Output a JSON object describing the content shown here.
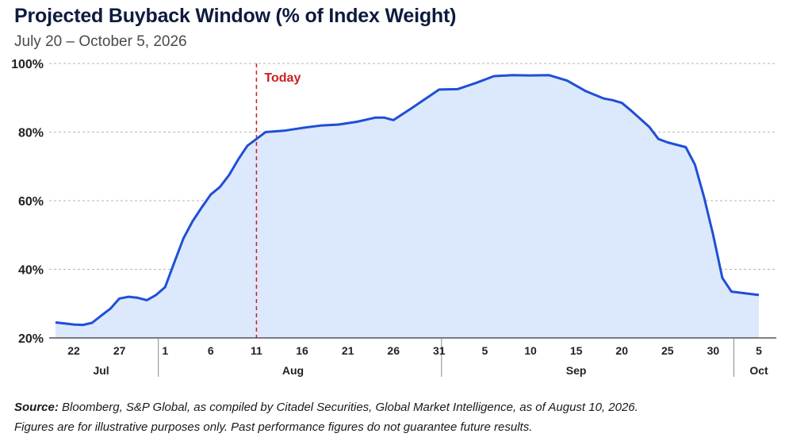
{
  "title": "Projected Buyback Window (% of Index Weight)",
  "subtitle": "July 20 – October 5, 2026",
  "source_label": "Source:",
  "source_text": "Bloomberg, S&P Global, as compiled by Citadel Securities, Global Market Intelligence, as of August 10, 2026.",
  "disclaimer": "Figures are for illustrative purposes only. Past performance figures do not guarantee future results.",
  "colors": {
    "line": "#1f4fd6",
    "fill": "#dce8fb",
    "today": "#cc1f1f",
    "grid": "#b5b5b5",
    "axis": "#333333"
  },
  "chart_data": {
    "type": "area",
    "title": "Projected Buyback Window (% of Index Weight)",
    "ylim": [
      20,
      100
    ],
    "yticks": [
      20,
      40,
      60,
      80,
      100
    ],
    "ytick_labels": [
      "20%",
      "40%",
      "60%",
      "80%",
      "100%"
    ],
    "grid": "horizontal dashed",
    "x_range": [
      "2026-07-20",
      "2026-10-05"
    ],
    "x_tick_dates": [
      "2026-07-22",
      "2026-07-27",
      "2026-08-01",
      "2026-08-06",
      "2026-08-11",
      "2026-08-16",
      "2026-08-21",
      "2026-08-26",
      "2026-08-31",
      "2026-09-05",
      "2026-09-10",
      "2026-09-15",
      "2026-09-20",
      "2026-09-25",
      "2026-09-30",
      "2026-10-05"
    ],
    "x_tick_labels": [
      "22",
      "27",
      "1",
      "6",
      "11",
      "16",
      "21",
      "26",
      "31",
      "5",
      "10",
      "15",
      "20",
      "25",
      "30",
      "5"
    ],
    "month_labels": [
      {
        "label": "Jul",
        "date": "2026-07-25"
      },
      {
        "label": "Aug",
        "date": "2026-08-15"
      },
      {
        "label": "Sep",
        "date": "2026-09-15"
      },
      {
        "label": "Oct",
        "date": "2026-10-05"
      }
    ],
    "month_separators": [
      "2026-07-31",
      "2026-08-31",
      "2026-10-02"
    ],
    "annotation": {
      "label": "Today",
      "date": "2026-08-11"
    },
    "series": [
      {
        "x": [
          "2026-07-20",
          "2026-07-21",
          "2026-07-22",
          "2026-07-23",
          "2026-07-24",
          "2026-07-25",
          "2026-07-26",
          "2026-07-27",
          "2026-07-28",
          "2026-07-29",
          "2026-07-30",
          "2026-07-31",
          "2026-08-01",
          "2026-08-02",
          "2026-08-03",
          "2026-08-04",
          "2026-08-05",
          "2026-08-06",
          "2026-08-07",
          "2026-08-08",
          "2026-08-09",
          "2026-08-10",
          "2026-08-11",
          "2026-08-12",
          "2026-08-14",
          "2026-08-16",
          "2026-08-18",
          "2026-08-20",
          "2026-08-22",
          "2026-08-24",
          "2026-08-25",
          "2026-08-26",
          "2026-08-28",
          "2026-08-31",
          "2026-09-02",
          "2026-09-04",
          "2026-09-06",
          "2026-09-08",
          "2026-09-10",
          "2026-09-12",
          "2026-09-14",
          "2026-09-16",
          "2026-09-18",
          "2026-09-19",
          "2026-09-20",
          "2026-09-21",
          "2026-09-23",
          "2026-09-24",
          "2026-09-25",
          "2026-09-26",
          "2026-09-27",
          "2026-09-28",
          "2026-09-29",
          "2026-09-30",
          "2026-10-01",
          "2026-10-02",
          "2026-10-05"
        ],
        "values": [
          24.5,
          24.2,
          23.9,
          23.8,
          24.4,
          26.5,
          28.5,
          31.5,
          32.0,
          31.7,
          31.0,
          32.5,
          34.8,
          42.0,
          49.0,
          54.0,
          58.0,
          61.8,
          64.0,
          67.5,
          72.0,
          76.0,
          78.0,
          80.0,
          80.4,
          81.2,
          81.9,
          82.2,
          83.0,
          84.2,
          84.2,
          83.5,
          87.0,
          92.4,
          92.5,
          94.3,
          96.3,
          96.6,
          96.5,
          96.6,
          95.0,
          92.0,
          89.8,
          89.3,
          88.5,
          86.3,
          81.5,
          78.0,
          77.0,
          76.3,
          75.6,
          70.5,
          61.0,
          50.0,
          37.5,
          33.5,
          32.5
        ]
      }
    ]
  }
}
